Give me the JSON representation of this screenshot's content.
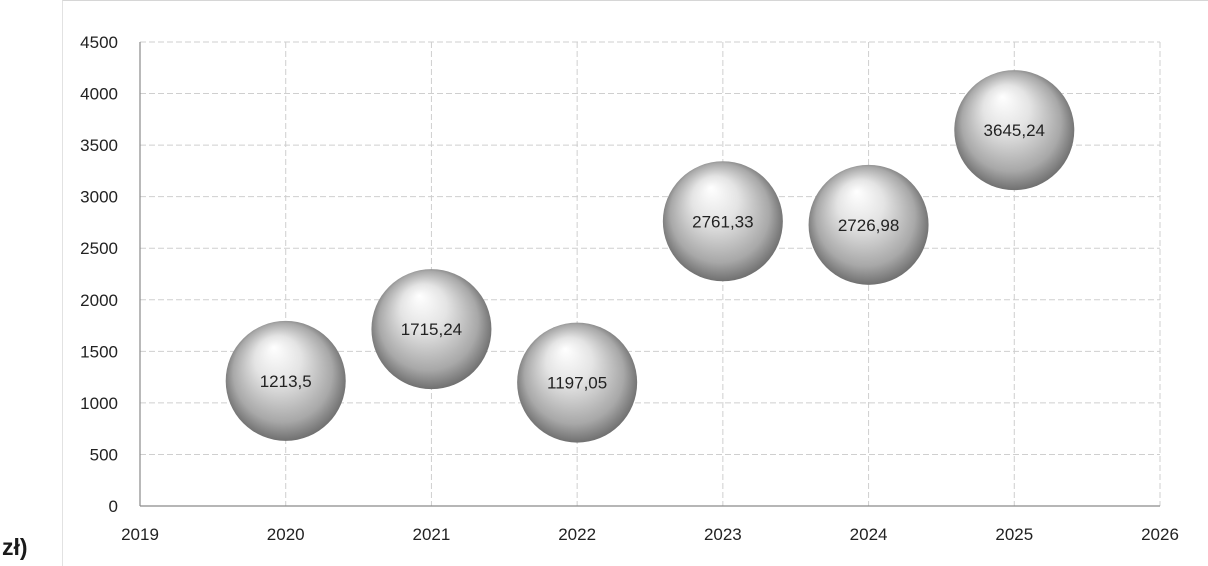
{
  "stray_label": "zł)",
  "chart_data": {
    "type": "scatter",
    "title": "",
    "xlabel": "",
    "ylabel": "",
    "x": [
      2020,
      2021,
      2022,
      2023,
      2024,
      2025
    ],
    "y": [
      1213.5,
      1715.24,
      1197.05,
      2761.33,
      2726.98,
      3645.24
    ],
    "labels": [
      "1213,5",
      "1715,24",
      "1197,05",
      "2761,33",
      "2726,98",
      "3645,24"
    ],
    "xlim": [
      2019,
      2026
    ],
    "ylim": [
      0,
      4500
    ],
    "xticks": [
      "2019",
      "2020",
      "2021",
      "2022",
      "2023",
      "2024",
      "2025",
      "2026"
    ],
    "yticks": [
      "0",
      "500",
      "1000",
      "1500",
      "2000",
      "2500",
      "3000",
      "3500",
      "4000",
      "4500"
    ],
    "grid": true,
    "legend": "none",
    "marker": "sphere",
    "colors": {
      "marker_light": "#ffffff",
      "marker_mid": "#bdbdbd",
      "marker_dark": "#5e5e5e",
      "grid": "#cfcfcf",
      "axis": "#8a8a8a",
      "text": "#222222"
    }
  }
}
